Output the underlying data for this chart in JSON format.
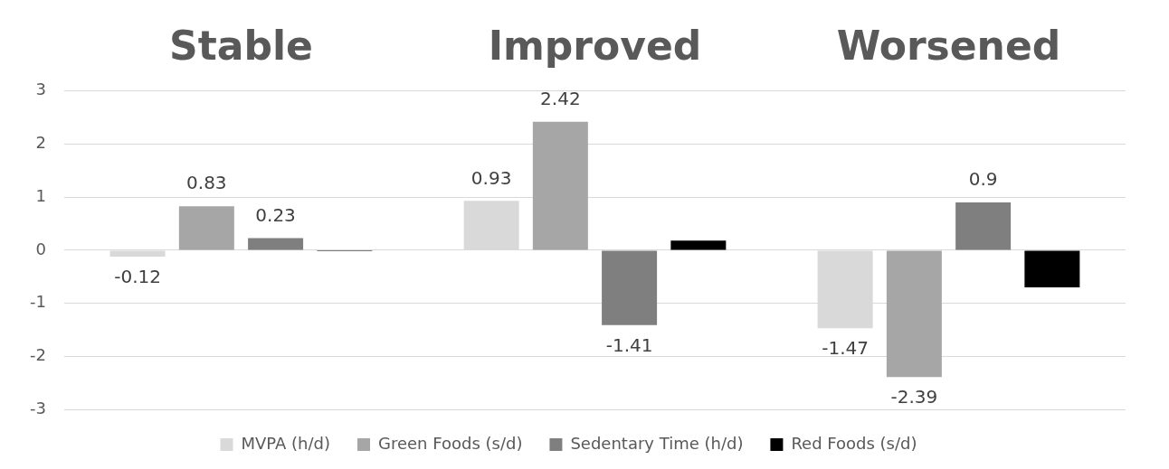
{
  "chart_data": {
    "type": "bar",
    "categories": [
      "Stable",
      "Improved",
      "Worsened"
    ],
    "series": [
      {
        "name": "MVPA (h/d)",
        "color": "#d9d9d9",
        "values": [
          -0.12,
          0.93,
          -1.47
        ],
        "value_labels": [
          "-0.12",
          "0.93",
          "-1.47"
        ]
      },
      {
        "name": "Green Foods (s/d)",
        "color": "#a6a6a6",
        "values": [
          0.83,
          2.42,
          -2.39
        ],
        "value_labels": [
          "0.83",
          "2.42",
          "-2.39"
        ]
      },
      {
        "name": "Sedentary Time (h/d)",
        "color": "#7f7f7f",
        "values": [
          0.23,
          -1.41,
          0.9
        ],
        "value_labels": [
          "0.23",
          "-1.41",
          "0.9"
        ]
      },
      {
        "name": "Red Foods (s/d)",
        "color": "#000000",
        "values": [
          -0.02,
          0.18,
          -0.7
        ]
      }
    ],
    "ylim": [
      -3,
      3
    ],
    "yticks": [
      -3,
      -2,
      -1,
      0,
      1,
      2,
      3
    ],
    "grid": "y",
    "legend": "bottom"
  }
}
